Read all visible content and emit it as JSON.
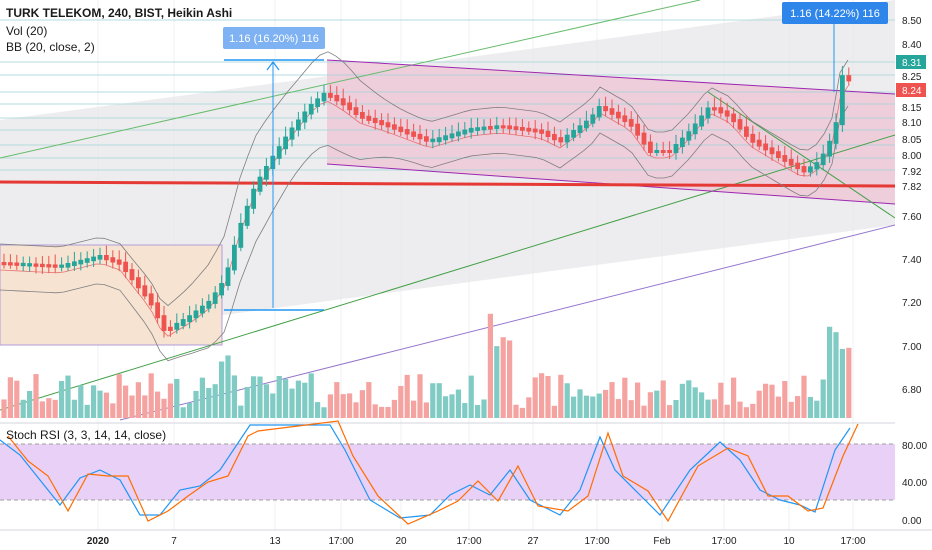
{
  "chart_data": {
    "type": "candlestick",
    "title": "TURK TELEKOM, 240, BIST, Heikin Ashi",
    "indicators": [
      "Vol (20)",
      "BB (20, close, 2)"
    ],
    "price_axis_ticks": [
      "8.50",
      "8.40",
      "8.31",
      "8.25",
      "8.24",
      "8.15",
      "8.10",
      "8.05",
      "8.00",
      "7.92",
      "7.82",
      "7.60",
      "7.40",
      "7.20",
      "7.00",
      "6.80"
    ],
    "current_price_label": "8.31",
    "price_marker_label": "8.24",
    "price_axis_colors": {
      "8.31": "#26a69a",
      "8.24": "#ef5350"
    },
    "time_axis_labels": [
      "2020",
      "7",
      "13",
      "17:00",
      "20",
      "17:00",
      "27",
      "17:00",
      "Feb",
      "17:00",
      "10",
      "17:00"
    ],
    "annotations": [
      {
        "text": "1.16 (16.20%) 116"
      },
      {
        "text": "1.16 (14.22%) 116"
      }
    ],
    "stoch": {
      "title": "Stoch RSI (3, 3, 14, 14, close)",
      "ticks": [
        "80.00",
        "40.00",
        "0.00"
      ],
      "k_color": "#2196f3",
      "d_color": "#ff6d00",
      "band_fill": "#e1bee7"
    },
    "colors": {
      "up": "#26a69a",
      "down": "#ef5350",
      "up_volume": "#80cbc4",
      "down_volume": "#f5a3a1",
      "support_line": "#e53935",
      "channel": "#9c27b0"
    }
  }
}
